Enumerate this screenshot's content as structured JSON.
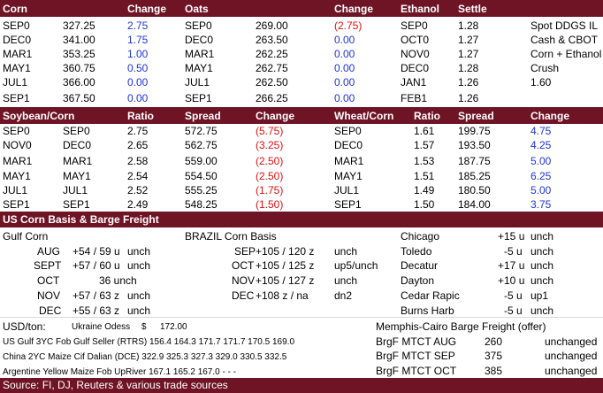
{
  "grain_header": {
    "corn": "Corn",
    "change": "Change",
    "oats": "Oats",
    "change2": "Change",
    "ethanol": "Ethanol",
    "settle": "Settle"
  },
  "corn": [
    {
      "m": "SEP0",
      "p": "327.25",
      "c": "2.75"
    },
    {
      "m": "DEC0",
      "p": "341.00",
      "c": "1.75"
    },
    {
      "m": "MAR1",
      "p": "353.25",
      "c": "1.00"
    },
    {
      "m": "MAY1",
      "p": "360.75",
      "c": "0.50"
    },
    {
      "m": "JUL1",
      "p": "366.00",
      "c": "0.00"
    },
    {
      "m": "SEP1",
      "p": "367.50",
      "c": "0.00"
    }
  ],
  "oats": [
    {
      "m": "SEP0",
      "p": "269.00",
      "c": "(2.75)"
    },
    {
      "m": "DEC0",
      "p": "263.50",
      "c": "0.00"
    },
    {
      "m": "MAR1",
      "p": "262.25",
      "c": "0.00"
    },
    {
      "m": "MAY1",
      "p": "262.75",
      "c": "0.00"
    },
    {
      "m": "JUL1",
      "p": "262.50",
      "c": "0.00"
    },
    {
      "m": "SEP1",
      "p": "266.25",
      "c": "0.00"
    }
  ],
  "ethanol": [
    {
      "m": "SEP0",
      "p": "1.28"
    },
    {
      "m": "OCT0",
      "p": "1.27"
    },
    {
      "m": "NOV0",
      "p": "1.27"
    },
    {
      "m": "DEC0",
      "p": "1.28"
    },
    {
      "m": "JAN1",
      "p": "1.26"
    },
    {
      "m": "FEB1",
      "p": "1.26"
    }
  ],
  "extra": [
    "Spot DDGS IL",
    "Cash & CBOT",
    "Corn + Ethanol",
    "Crush",
    "1.60",
    ""
  ],
  "spread_header": {
    "a": "Soybean/Corn",
    "b": "Ratio",
    "c": "Spread",
    "d": "Change",
    "e": "Wheat/Corn",
    "f": "Ratio",
    "g": "Spread",
    "h": "Change"
  },
  "soy_corn": [
    {
      "m1": "SEP0",
      "m2": "SEP0",
      "r": "2.75",
      "s": "572.75",
      "c": "(5.75)"
    },
    {
      "m1": "NOV0",
      "m2": "DEC0",
      "r": "2.65",
      "s": "562.75",
      "c": "(3.25)"
    },
    {
      "m1": "MAR1",
      "m2": "MAR1",
      "r": "2.58",
      "s": "559.00",
      "c": "(2.50)"
    },
    {
      "m1": "MAY1",
      "m2": "MAY1",
      "r": "2.54",
      "s": "554.50",
      "c": "(2.50)"
    },
    {
      "m1": "JUL1",
      "m2": "JUL1",
      "r": "2.52",
      "s": "555.25",
      "c": "(1.75)"
    },
    {
      "m1": "SEP1",
      "m2": "SEP1",
      "r": "2.49",
      "s": "548.25",
      "c": "(1.50)"
    }
  ],
  "wheat_corn": [
    {
      "m": "SEP0",
      "r": "1.61",
      "s": "199.75",
      "c": "4.75"
    },
    {
      "m": "DEC0",
      "r": "1.57",
      "s": "193.50",
      "c": "4.25"
    },
    {
      "m": "MAR1",
      "r": "1.53",
      "s": "187.75",
      "c": "5.00"
    },
    {
      "m": "MAY1",
      "r": "1.51",
      "s": "185.25",
      "c": "6.25"
    },
    {
      "m": "JUL1",
      "r": "1.49",
      "s": "180.50",
      "c": "5.00"
    },
    {
      "m": "SEP1",
      "r": "1.50",
      "s": "184.00",
      "c": "3.75"
    }
  ],
  "basis_header": "US Corn Basis & Barge Freight",
  "gulf_corn": {
    "title": "Gulf Corn",
    "rows": [
      {
        "m": "AUG",
        "v": "+54 / 59 u",
        "c": "unch"
      },
      {
        "m": "SEPT",
        "v": "+57 / 60 u",
        "c": "unch"
      },
      {
        "m": "OCT",
        "v": "36 unch",
        "c": ""
      },
      {
        "m": "NOV",
        "v": "+57 / 63 z",
        "c": "unch"
      },
      {
        "m": "DEC",
        "v": "+55 / 63 z",
        "c": "unch"
      }
    ]
  },
  "brazil": {
    "title": "BRAZIL Corn Basis",
    "rows": [
      {
        "m": "SEP",
        "v": "+105 / 120 z",
        "c": "unch"
      },
      {
        "m": "OCT",
        "v": "+105 / 125 z",
        "c": "up5/unch"
      },
      {
        "m": "NOV",
        "v": "+105 / 127 z",
        "c": "unch"
      },
      {
        "m": "DEC",
        "v": "+108 z / na",
        "c": "dn2"
      }
    ]
  },
  "local": [
    {
      "n": "Chicago",
      "v": "+15 u",
      "c": "unch"
    },
    {
      "n": "Toledo",
      "v": "-5 u",
      "c": "unch"
    },
    {
      "n": "Decatur",
      "v": "+17 u",
      "c": "unch"
    },
    {
      "n": "Dayton",
      "v": "+10 u",
      "c": "unch"
    },
    {
      "n": "Cedar Rapic",
      "v": "-5 u",
      "c": "up1"
    },
    {
      "n": "Burns Harb",
      "v": "-5 u",
      "c": "unch"
    }
  ],
  "usd": {
    "label": "USD/ton:",
    "odessa_label": "Ukraine Odess",
    "currency": "$",
    "odessa_value": "172.00"
  },
  "fob": [
    {
      "t": "US Gulf  3YC Fob Gulf Seller (RTRS) 156.4  164.3  171.7  171.7  170.5  169.0"
    },
    {
      "t": "China   2YC Maize Cif Dalian (DCE) 322.9  325.3  327.3  329.0  330.5  332.5"
    },
    {
      "t": "Argentine  Yellow Maize Fob UpRiver  167.1  165.2  167.0   -     -     -"
    }
  ],
  "barge": {
    "title": "Memphis-Cairo Barge Freight (offer)",
    "rows": [
      {
        "n": "BrgF MTCT AUG",
        "v": "260",
        "c": "unchanged"
      },
      {
        "n": "BrgF MTCT SEP",
        "v": "375",
        "c": "unchanged"
      },
      {
        "n": "BrgF MTCT OCT",
        "v": "385",
        "c": "unchanged"
      }
    ]
  },
  "source": "Source: FI, DJ, Reuters & various trade sources",
  "colors": {
    "header": "#6e1425",
    "up": "#1f35d6",
    "down": "#e01010"
  }
}
